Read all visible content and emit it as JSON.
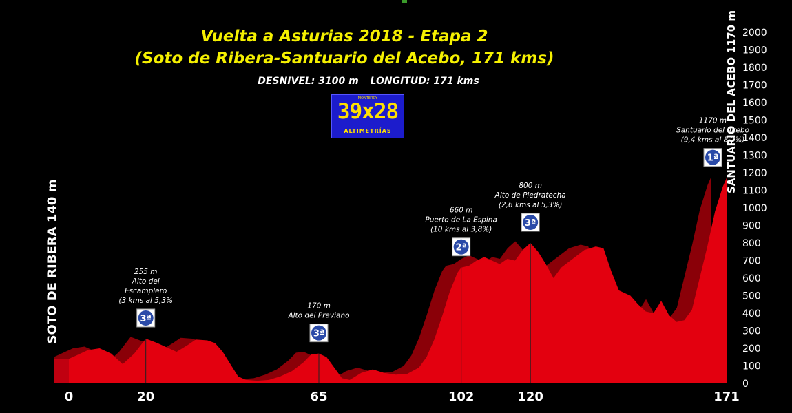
{
  "title_line1": "Vuelta a Asturias 2018 - Etapa 2",
  "title_line2": "(Soto de Ribera-Santuario del Acebo, 171 kms)",
  "desnivel": "DESNIVEL:  3100 m",
  "longitud": "LONGITUD:  171 kms",
  "logo": {
    "top_text": "MONTEROY",
    "main": "39x28",
    "sub": "ALTIMETRÍAS"
  },
  "start_label": "SOTO DE RIBERA 140 m",
  "finish_label": "SANTUARIO DEL ACEBO 1170 m",
  "colors": {
    "profile_front": "#e3000f",
    "profile_back": "#8a0008",
    "title": "#f5f000",
    "badge": "#2a4aa8"
  },
  "chart_data": {
    "type": "area",
    "xlabel": "",
    "ylabel": "",
    "x_ticks": [
      0,
      20,
      65,
      102,
      120,
      171
    ],
    "y_ticks": [
      0,
      100,
      200,
      300,
      400,
      500,
      600,
      700,
      800,
      900,
      1000,
      1100,
      1200,
      1300,
      1400,
      1500,
      1600,
      1700,
      1800,
      1900,
      2000
    ],
    "ylim": [
      0,
      2000
    ],
    "xlim": [
      0,
      171
    ],
    "profile": [
      [
        0,
        140
      ],
      [
        2,
        160
      ],
      [
        5,
        190
      ],
      [
        8,
        200
      ],
      [
        11,
        170
      ],
      [
        14,
        110
      ],
      [
        17,
        170
      ],
      [
        20,
        255
      ],
      [
        23,
        230
      ],
      [
        26,
        200
      ],
      [
        28,
        180
      ],
      [
        31,
        220
      ],
      [
        33,
        250
      ],
      [
        36,
        245
      ],
      [
        38,
        230
      ],
      [
        40,
        180
      ],
      [
        42,
        110
      ],
      [
        44,
        40
      ],
      [
        46,
        20
      ],
      [
        49,
        15
      ],
      [
        52,
        20
      ],
      [
        55,
        40
      ],
      [
        58,
        70
      ],
      [
        61,
        120
      ],
      [
        63,
        165
      ],
      [
        65,
        170
      ],
      [
        67,
        150
      ],
      [
        69,
        90
      ],
      [
        71,
        30
      ],
      [
        73,
        20
      ],
      [
        76,
        60
      ],
      [
        79,
        80
      ],
      [
        82,
        60
      ],
      [
        85,
        50
      ],
      [
        88,
        55
      ],
      [
        91,
        90
      ],
      [
        93,
        150
      ],
      [
        95,
        250
      ],
      [
        97,
        380
      ],
      [
        99,
        520
      ],
      [
        101,
        630
      ],
      [
        102,
        660
      ],
      [
        104,
        670
      ],
      [
        106,
        700
      ],
      [
        108,
        720
      ],
      [
        110,
        700
      ],
      [
        112,
        680
      ],
      [
        114,
        710
      ],
      [
        116,
        700
      ],
      [
        118,
        760
      ],
      [
        120,
        800
      ],
      [
        122,
        750
      ],
      [
        124,
        680
      ],
      [
        126,
        600
      ],
      [
        128,
        660
      ],
      [
        131,
        710
      ],
      [
        134,
        760
      ],
      [
        137,
        780
      ],
      [
        139,
        770
      ],
      [
        141,
        640
      ],
      [
        143,
        530
      ],
      [
        146,
        500
      ],
      [
        148,
        450
      ],
      [
        150,
        410
      ],
      [
        152,
        400
      ],
      [
        154,
        470
      ],
      [
        156,
        390
      ],
      [
        158,
        350
      ],
      [
        160,
        360
      ],
      [
        162,
        420
      ],
      [
        164,
        600
      ],
      [
        166,
        780
      ],
      [
        168,
        980
      ],
      [
        170,
        1120
      ],
      [
        171,
        1170
      ]
    ],
    "climbs": [
      {
        "km": 20,
        "elev": 255,
        "cat": "3ª",
        "labels": [
          "255 m",
          "Alto del",
          "Escamplero",
          "(3 kms al 5,3%"
        ]
      },
      {
        "km": 65,
        "elev": 170,
        "cat": "3ª",
        "labels": [
          "170 m",
          "Alto del Praviano"
        ]
      },
      {
        "km": 102,
        "elev": 660,
        "cat": "2ª",
        "labels": [
          "660 m",
          "Puerto de La Espina",
          "(10 kms al 3,8%)"
        ]
      },
      {
        "km": 120,
        "elev": 800,
        "cat": "3ª",
        "labels": [
          "800 m",
          "Alto de Piedratecha",
          "(2,6 kms al 5,3%)"
        ]
      },
      {
        "km": 171,
        "elev": 1170,
        "cat": "1ª",
        "labels": [
          "1170 m",
          "Santuario del Acebo",
          "(9,4 kms al 8,2%)"
        ]
      }
    ]
  }
}
